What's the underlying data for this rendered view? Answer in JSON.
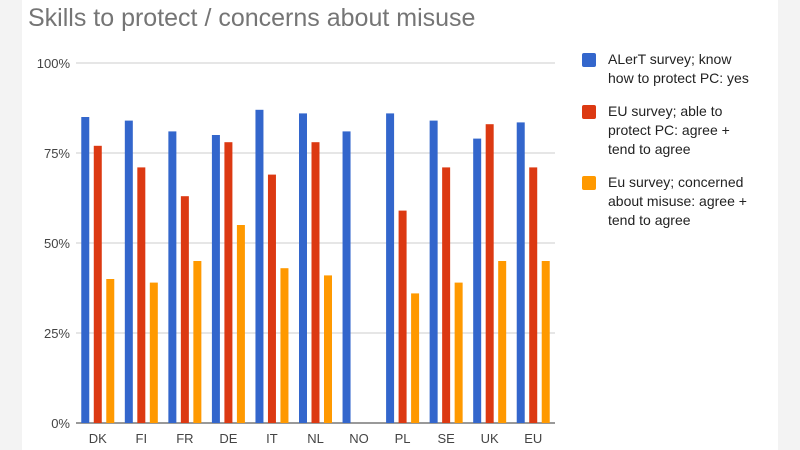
{
  "chart_data": {
    "type": "bar",
    "title": "Skills to protect / concerns about misuse",
    "categories": [
      "DK",
      "FI",
      "FR",
      "DE",
      "IT",
      "NL",
      "NO",
      "PL",
      "SE",
      "UK",
      "EU"
    ],
    "ylim": [
      0,
      100
    ],
    "yticks": [
      "0%",
      "25%",
      "50%",
      "75%",
      "100%"
    ],
    "grid": true,
    "legend_position": "right",
    "series": [
      {
        "name": "ALerT survey; know\nhow to protect PC: yes",
        "color": "#3366cc",
        "values": [
          85,
          84,
          81,
          80,
          87,
          86,
          81,
          86,
          84,
          79,
          83.5
        ]
      },
      {
        "name": "EU survey; able to\nprotect PC: agree +\ntend to agree",
        "color": "#dc3912",
        "values": [
          77,
          71,
          63,
          78,
          69,
          78,
          null,
          59,
          71,
          83,
          71
        ]
      },
      {
        "name": "Eu survey; concerned\nabout misuse: agree +\ntend to agree",
        "color": "#ff9900",
        "values": [
          40,
          39,
          45,
          55,
          43,
          41,
          null,
          36,
          39,
          45,
          45
        ]
      }
    ]
  }
}
